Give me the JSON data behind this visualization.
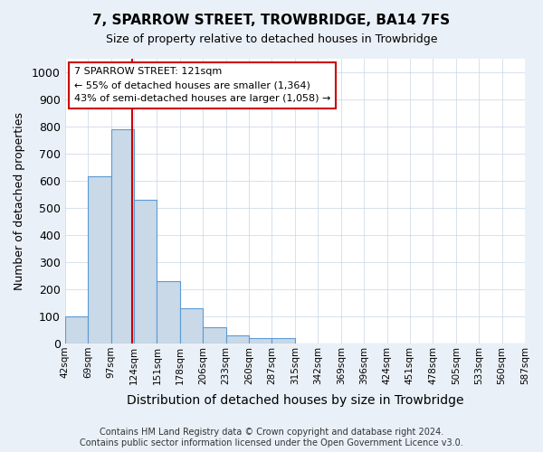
{
  "title": "7, SPARROW STREET, TROWBRIDGE, BA14 7FS",
  "subtitle": "Size of property relative to detached houses in Trowbridge",
  "xlabel": "Distribution of detached houses by size in Trowbridge",
  "ylabel": "Number of detached properties",
  "bin_labels": [
    "42sqm",
    "69sqm",
    "97sqm",
    "124sqm",
    "151sqm",
    "178sqm",
    "206sqm",
    "233sqm",
    "260sqm",
    "287sqm",
    "315sqm",
    "342sqm",
    "369sqm",
    "396sqm",
    "424sqm",
    "451sqm",
    "478sqm",
    "505sqm",
    "533sqm",
    "560sqm",
    "587sqm"
  ],
  "bar_values": [
    100,
    615,
    790,
    530,
    230,
    130,
    60,
    30,
    20,
    20,
    0,
    0,
    0,
    0,
    0,
    0,
    0,
    0,
    0,
    0
  ],
  "bar_color": "#c9d9e8",
  "bar_edge_color": "#5b9bd5",
  "ylim": [
    0,
    1050
  ],
  "yticks": [
    0,
    100,
    200,
    300,
    400,
    500,
    600,
    700,
    800,
    900,
    1000
  ],
  "vline_color": "#cc0000",
  "annotation_lines": [
    "7 SPARROW STREET: 121sqm",
    "← 55% of detached houses are smaller (1,364)",
    "43% of semi-detached houses are larger (1,058) →"
  ],
  "annotation_box_color": "#cc0000",
  "footer_line1": "Contains HM Land Registry data © Crown copyright and database right 2024.",
  "footer_line2": "Contains public sector information licensed under the Open Government Licence v3.0.",
  "bg_color": "#eaf0f8",
  "plot_bg_color": "#ffffff",
  "grid_color": "#c8d4e4"
}
